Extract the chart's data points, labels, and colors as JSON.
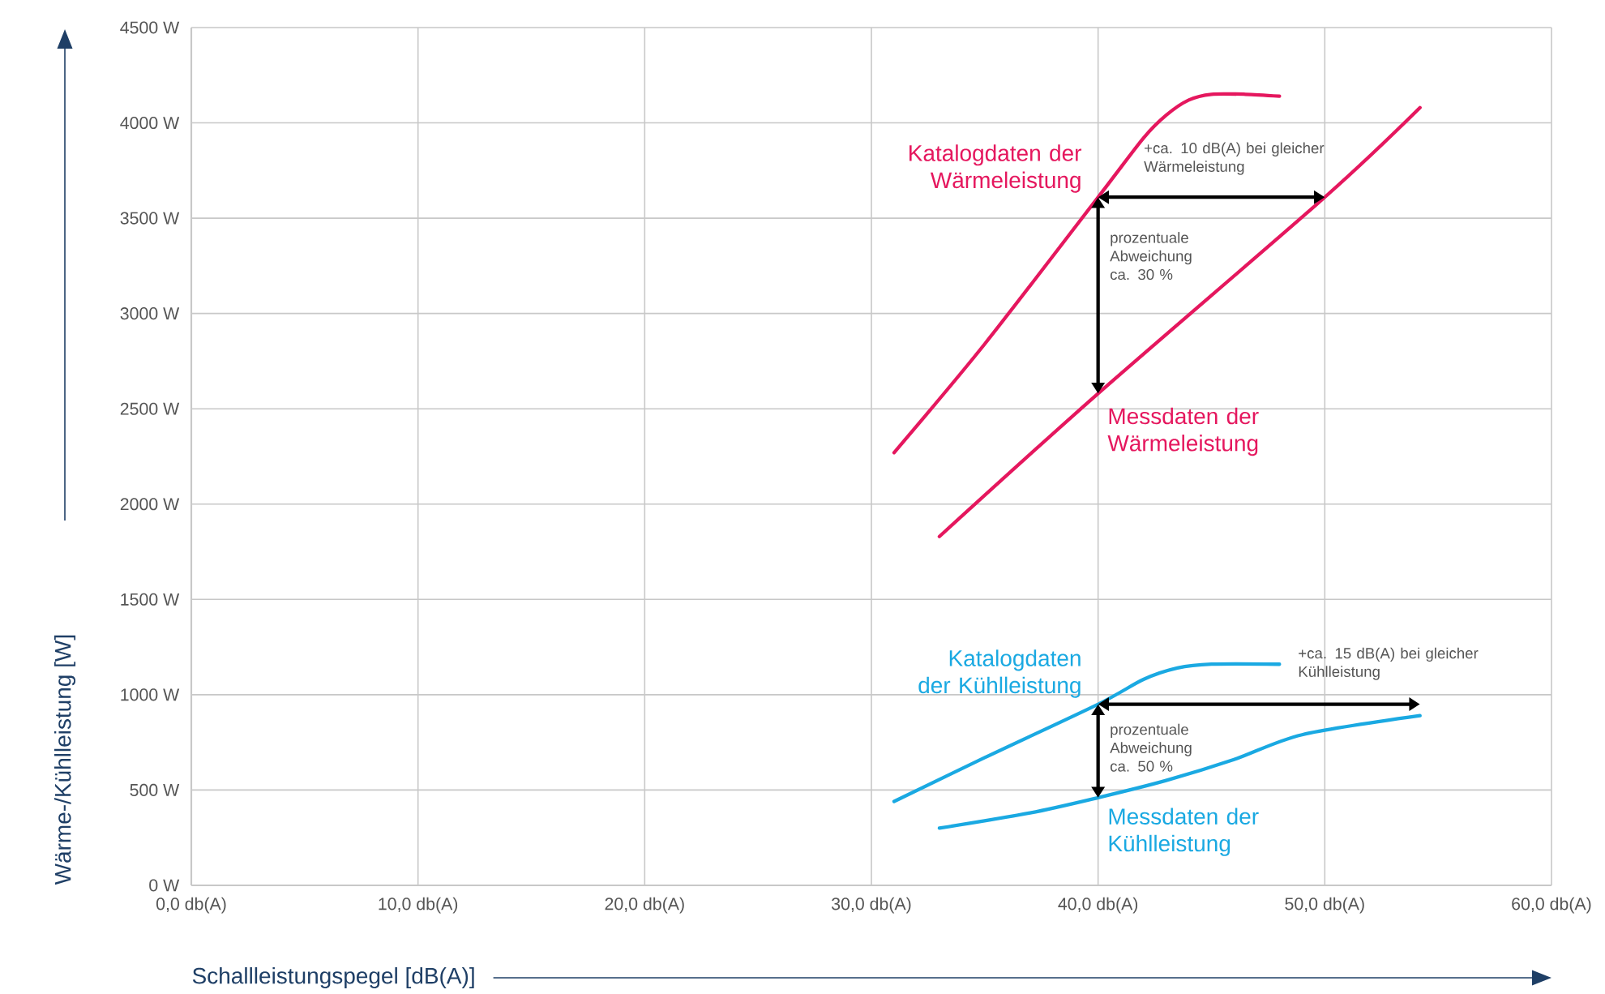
{
  "chart_data": {
    "type": "line",
    "xlabel": "Schallleistungspegel [dB(A)]",
    "ylabel": "Wärme-/Kühlleistung [W]",
    "xlim": [
      0,
      60
    ],
    "ylim": [
      0,
      4500
    ],
    "xticks": [
      {
        "value": 0,
        "label": "0,0 db(A)"
      },
      {
        "value": 10,
        "label": "10,0 db(A)"
      },
      {
        "value": 20,
        "label": "20,0 db(A)"
      },
      {
        "value": 30,
        "label": "30,0 db(A)"
      },
      {
        "value": 40,
        "label": "40,0 db(A)"
      },
      {
        "value": 50,
        "label": "50,0 db(A)"
      },
      {
        "value": 60,
        "label": "60,0 db(A)"
      }
    ],
    "yticks": [
      {
        "value": 0,
        "label": "0 W"
      },
      {
        "value": 500,
        "label": "500 W"
      },
      {
        "value": 1000,
        "label": "1000 W"
      },
      {
        "value": 1500,
        "label": "1500 W"
      },
      {
        "value": 2000,
        "label": "2000 W"
      },
      {
        "value": 2500,
        "label": "2500 W"
      },
      {
        "value": 3000,
        "label": "3000 W"
      },
      {
        "value": 3500,
        "label": "3500 W"
      },
      {
        "value": 4000,
        "label": "4000 W"
      },
      {
        "value": 4500,
        "label": "4500 W"
      }
    ],
    "grid": true,
    "series": [
      {
        "name": "Katalogdaten der Wärmeleistung",
        "color": "#e5175e",
        "x": [
          31,
          35,
          40,
          42,
          43,
          44,
          45,
          46.5,
          48
        ],
        "values": [
          2270,
          2840,
          3610,
          3920,
          4040,
          4120,
          4150,
          4150,
          4140
        ]
      },
      {
        "name": "Messdaten der Wärmeleistung",
        "color": "#e5175e",
        "x": [
          33,
          40,
          50,
          54.2
        ],
        "values": [
          1830,
          2580,
          3610,
          4080
        ]
      },
      {
        "name": "Katalogdaten der Kühlleistung",
        "color": "#1aa9e2",
        "x": [
          31,
          35,
          40,
          42,
          43.5,
          45,
          48
        ],
        "values": [
          440,
          670,
          950,
          1080,
          1140,
          1160,
          1160
        ]
      },
      {
        "name": "Messdaten der Kühlleistung",
        "color": "#1aa9e2",
        "x": [
          33,
          37,
          40,
          43,
          46,
          49,
          54.2
        ],
        "values": [
          300,
          380,
          460,
          550,
          660,
          790,
          890
        ]
      }
    ],
    "annotations": [
      "+ca. 10 dB(A) bei gleicher Wärmeleistung",
      "prozentuale Abweichung ca. 30 %",
      "+ca. 15 dB(A) bei gleicher Kühlleistung",
      "prozentuale Abweichung ca. 50 %"
    ]
  }
}
